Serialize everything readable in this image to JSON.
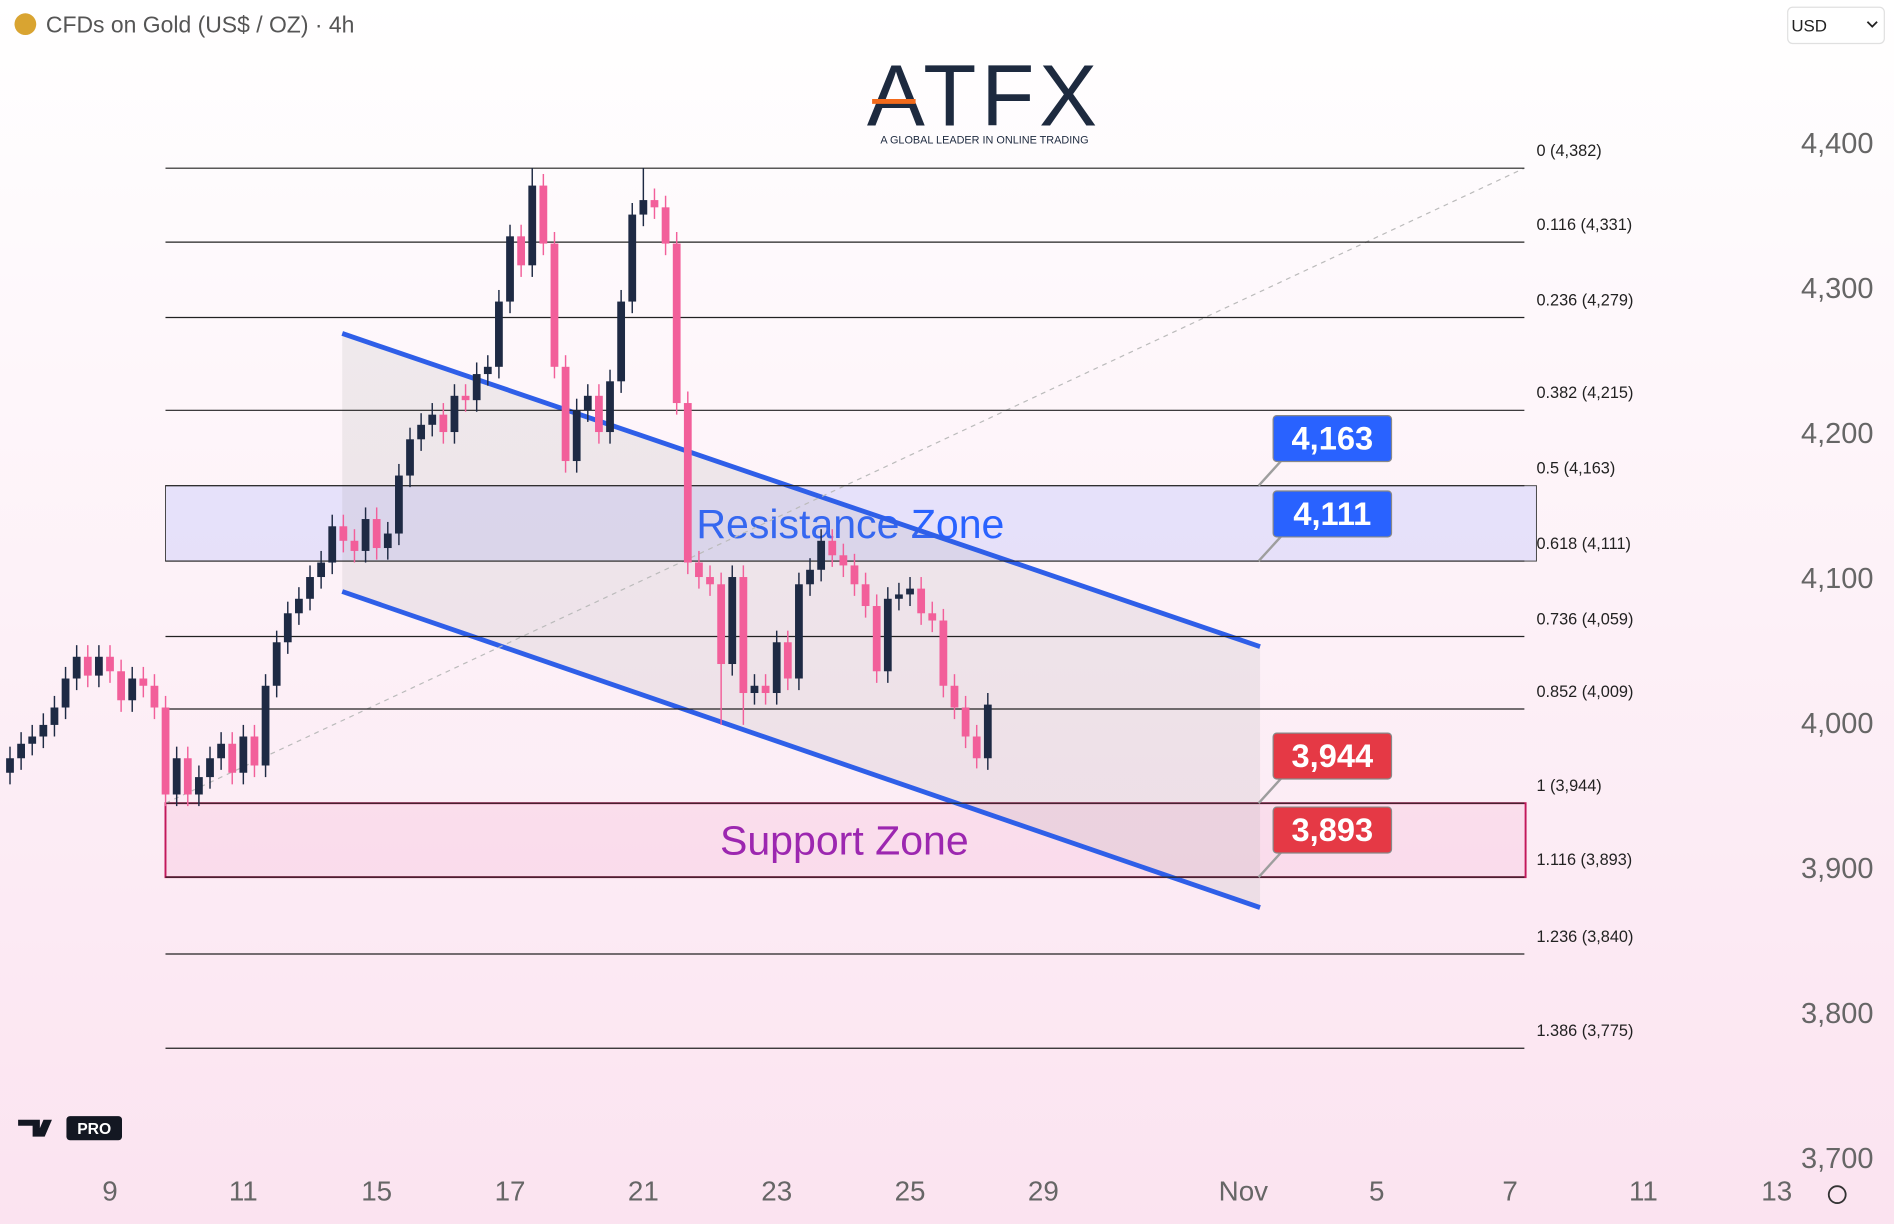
{
  "chart_data": {
    "type": "candlestick",
    "title": "CFDs on Gold (US$ / OZ) · 4h",
    "currency": "USD",
    "logo": "ATFX",
    "tagline": "A GLOBAL LEADER IN ONLINE TRADING",
    "badge": "PRO",
    "up_color": "#1e2a44",
    "down_color": "#f25f9a",
    "open": [
      3965,
      3975,
      3985,
      3990,
      3998,
      4010,
      4030,
      4045,
      4032,
      4045,
      4035,
      4015,
      4030,
      4025,
      4010,
      3950,
      3975,
      3950,
      3962,
      3975,
      3985,
      3965,
      3990,
      3970,
      4025,
      4055,
      4075,
      4085,
      4100,
      4110,
      4135,
      4125,
      4118,
      4140,
      4120,
      4130,
      4170,
      4195,
      4205,
      4212,
      4200,
      4225,
      4222,
      4240,
      4245,
      4290,
      4335,
      4315,
      4370,
      4330,
      4245,
      4180,
      4215,
      4225,
      4200,
      4235,
      4290,
      4350,
      4360,
      4355,
      4330,
      4220,
      4110,
      4100,
      4095,
      4040,
      4100,
      4020,
      4025,
      4020,
      4055,
      4030,
      4095,
      4105,
      4125,
      4115,
      4108,
      4095,
      4080,
      4035,
      4085,
      4088,
      4092,
      4075,
      4070,
      4025,
      4010,
      3990,
      3975
    ],
    "high": [
      3983,
      3993,
      3998,
      4006,
      4018,
      4038,
      4053,
      4053,
      4053,
      4053,
      4043,
      4038,
      4038,
      4033,
      4018,
      3983,
      3983,
      3970,
      3983,
      3993,
      3993,
      3998,
      3998,
      4033,
      4063,
      4083,
      4093,
      4108,
      4118,
      4143,
      4143,
      4133,
      4148,
      4148,
      4138,
      4178,
      4203,
      4213,
      4220,
      4220,
      4233,
      4233,
      4248,
      4253,
      4298,
      4343,
      4343,
      4382,
      4378,
      4338,
      4253,
      4223,
      4233,
      4233,
      4243,
      4298,
      4358,
      4382,
      4368,
      4363,
      4338,
      4228,
      4118,
      4108,
      4103,
      4108,
      4108,
      4033,
      4033,
      4063,
      4063,
      4103,
      4113,
      4133,
      4133,
      4123,
      4116,
      4103,
      4088,
      4093,
      4096,
      4100,
      4100,
      4083,
      4078,
      4033,
      4018,
      3998,
      4020
    ],
    "low": [
      3957,
      3967,
      3977,
      3982,
      3990,
      4002,
      4022,
      4024,
      4024,
      4027,
      4007,
      4007,
      4017,
      4002,
      3942,
      3942,
      3942,
      3942,
      3954,
      3967,
      3957,
      3957,
      3962,
      3962,
      4017,
      4047,
      4067,
      4077,
      4092,
      4102,
      4117,
      4110,
      4110,
      4112,
      4112,
      4122,
      4162,
      4187,
      4197,
      4192,
      4192,
      4214,
      4214,
      4232,
      4237,
      4282,
      4307,
      4307,
      4322,
      4237,
      4172,
      4172,
      4207,
      4192,
      4192,
      4227,
      4282,
      4342,
      4347,
      4322,
      4212,
      4102,
      4092,
      4087,
      3998,
      4032,
      3998,
      4012,
      4012,
      4012,
      4022,
      4022,
      4087,
      4097,
      4107,
      4100,
      4087,
      4072,
      4027,
      4027,
      4077,
      4080,
      4067,
      4062,
      4017,
      4002,
      3982,
      3968,
      3967
    ],
    "close": [
      3975,
      3985,
      3990,
      3998,
      4010,
      4030,
      4045,
      4032,
      4045,
      4035,
      4015,
      4030,
      4025,
      4010,
      3950,
      3975,
      3950,
      3962,
      3975,
      3985,
      3965,
      3990,
      3970,
      4025,
      4055,
      4075,
      4085,
      4100,
      4110,
      4135,
      4125,
      4118,
      4140,
      4120,
      4130,
      4170,
      4195,
      4205,
      4212,
      4200,
      4225,
      4222,
      4240,
      4245,
      4290,
      4335,
      4315,
      4370,
      4330,
      4245,
      4180,
      4215,
      4225,
      4200,
      4235,
      4290,
      4350,
      4360,
      4355,
      4330,
      4220,
      4110,
      4100,
      4095,
      4040,
      4100,
      4020,
      4025,
      4020,
      4055,
      4030,
      4095,
      4105,
      4125,
      4115,
      4108,
      4095,
      4080,
      4035,
      4085,
      4088,
      4092,
      4075,
      4070,
      4025,
      4010,
      3990,
      3975,
      4012
    ],
    "xlim": [
      -0.9,
      158.9
    ],
    "xticks": [
      {
        "value": 9,
        "label": "9"
      },
      {
        "value": 21,
        "label": "11"
      },
      {
        "value": 33,
        "label": "15"
      },
      {
        "value": 45,
        "label": "17"
      },
      {
        "value": 57,
        "label": "21"
      },
      {
        "value": 69,
        "label": "23"
      },
      {
        "value": 81,
        "label": "25"
      },
      {
        "value": 93,
        "label": "29"
      },
      {
        "value": 111,
        "label": "Nov"
      },
      {
        "value": 123,
        "label": "5"
      },
      {
        "value": 135,
        "label": "7"
      },
      {
        "value": 147,
        "label": "11"
      },
      {
        "value": 159,
        "label": "13"
      }
    ],
    "ylim": [
      3694,
      4498
    ],
    "yticks": [
      {
        "value": 3700,
        "label": "3,700"
      },
      {
        "value": 3800,
        "label": "3,800"
      },
      {
        "value": 3900,
        "label": "3,900"
      },
      {
        "value": 4000,
        "label": "4,000"
      },
      {
        "value": 4100,
        "label": "4,100"
      },
      {
        "value": 4200,
        "label": "4,200"
      },
      {
        "value": 4300,
        "label": "4,300"
      },
      {
        "value": 4400,
        "label": "4,400"
      }
    ],
    "fib_levels": [
      {
        "value": 4382,
        "label": "0 (4,382)"
      },
      {
        "value": 4331,
        "label": "0.116 (4,331)"
      },
      {
        "value": 4279,
        "label": "0.236 (4,279)"
      },
      {
        "value": 4215,
        "label": "0.382 (4,215)"
      },
      {
        "value": 4163,
        "label": "0.5 (4,163)"
      },
      {
        "value": 4111,
        "label": "0.618 (4,111)"
      },
      {
        "value": 4059,
        "label": "0.736 (4,059)"
      },
      {
        "value": 4009,
        "label": "0.852 (4,009)"
      },
      {
        "value": 3944,
        "label": "1 (3,944)"
      },
      {
        "value": 3893,
        "label": "1.116 (3,893)"
      },
      {
        "value": 3840,
        "label": "1.236 (3,840)"
      },
      {
        "value": 3775,
        "label": "1.386 (3,775)"
      }
    ],
    "zones": [
      {
        "label": "Resistance Zone",
        "low": 4111,
        "high": 4163,
        "color": "#2962ff"
      },
      {
        "label": "Support Zone",
        "low": 3893,
        "high": 3944,
        "color": "#9c27b0"
      }
    ],
    "channel": {
      "upper": [
        [
          29.9,
          4268
        ],
        [
          112.5,
          4052
        ]
      ],
      "lower": [
        [
          29.9,
          4090
        ],
        [
          112.5,
          3872
        ]
      ],
      "color": "#2f5fe8"
    },
    "price_tags": [
      {
        "value": 4163,
        "label": "4,163",
        "color": "#2962ff"
      },
      {
        "value": 4111,
        "label": "4,111",
        "color": "#2962ff"
      },
      {
        "value": 3944,
        "label": "3,944",
        "color": "#e53945"
      },
      {
        "value": 3893,
        "label": "3,893",
        "color": "#e53945"
      }
    ]
  }
}
